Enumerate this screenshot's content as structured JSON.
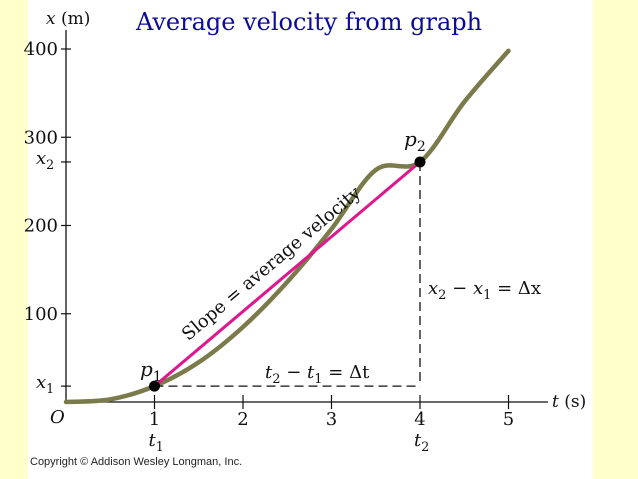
{
  "title": "Average velocity from graph",
  "copyright": "Copyright © Addison Wesley Longman, Inc.",
  "colors": {
    "curve": "#7a7a4a",
    "secant": "#e0168f",
    "text": "#0b0b99",
    "background": "#ffffcc"
  },
  "chart_data": {
    "type": "line",
    "ylabel": "x (m)",
    "xlabel": "t (s)",
    "origin_label": "O",
    "xlim": [
      0,
      5.4
    ],
    "ylim": [
      0,
      415
    ],
    "x_ticks": [
      1,
      2,
      3,
      4,
      5
    ],
    "y_ticks": [
      100,
      200,
      300,
      400
    ],
    "grid": false,
    "series": [
      {
        "x": [
          0,
          0.5,
          1,
          1.5,
          2,
          2.5,
          3,
          3.5,
          4,
          4.5,
          5
        ],
        "y": [
          0,
          3,
          18,
          45,
          85,
          136,
          196,
          263,
          272,
          340,
          398
        ]
      }
    ],
    "points": [
      {
        "label": "p",
        "sub": "1",
        "t": 1,
        "x": 18
      },
      {
        "label": "p",
        "sub": "2",
        "t": 4,
        "x": 272
      }
    ],
    "x_marks": [
      {
        "label": "t",
        "sub": "1",
        "t": 1
      },
      {
        "label": "t",
        "sub": "2",
        "t": 4
      }
    ],
    "y_marks": [
      {
        "label": "x",
        "sub": "1",
        "x": 18
      },
      {
        "label": "x",
        "sub": "2",
        "x": 272
      }
    ],
    "annotations": {
      "slope": "Slope = average velocity",
      "delta_t": {
        "a": "t",
        "a_sub": "2",
        "op": " − ",
        "b": "t",
        "b_sub": "1",
        "eq": " = Δt"
      },
      "delta_x": {
        "a": "x",
        "a_sub": "2",
        "op": " − ",
        "b": "x",
        "b_sub": "1",
        "eq": " = Δx"
      }
    }
  }
}
